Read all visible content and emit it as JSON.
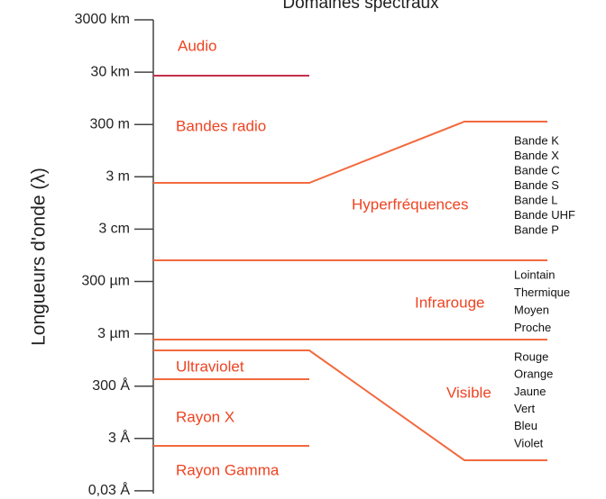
{
  "title": "Domaines spectraux",
  "axis_label": "Longueurs d'onde (λ)",
  "ticks": [
    "3000 km",
    "30 km",
    "300 m",
    "3 m",
    "3 cm",
    "300 µm",
    "3 µm",
    "300 Å",
    "3 Å",
    "0,03 Å"
  ],
  "bands": [
    "Audio",
    "Bandes radio",
    "Hyperfréquences",
    "Infrarouge",
    "Ultraviolet",
    "Visible",
    "Rayon X",
    "Rayon Gamma"
  ],
  "microwave_bands": [
    "Bande K",
    "Bande X",
    "Bande C",
    "Bande S",
    "Bande L",
    "Bande UHF",
    "Bande P"
  ],
  "infrared_bands": [
    "Lointain",
    "Thermique",
    "Moyen",
    "Proche"
  ],
  "visible_colors": [
    "Rouge",
    "Orange",
    "Jaune",
    "Vert",
    "Bleu",
    "Violet"
  ]
}
